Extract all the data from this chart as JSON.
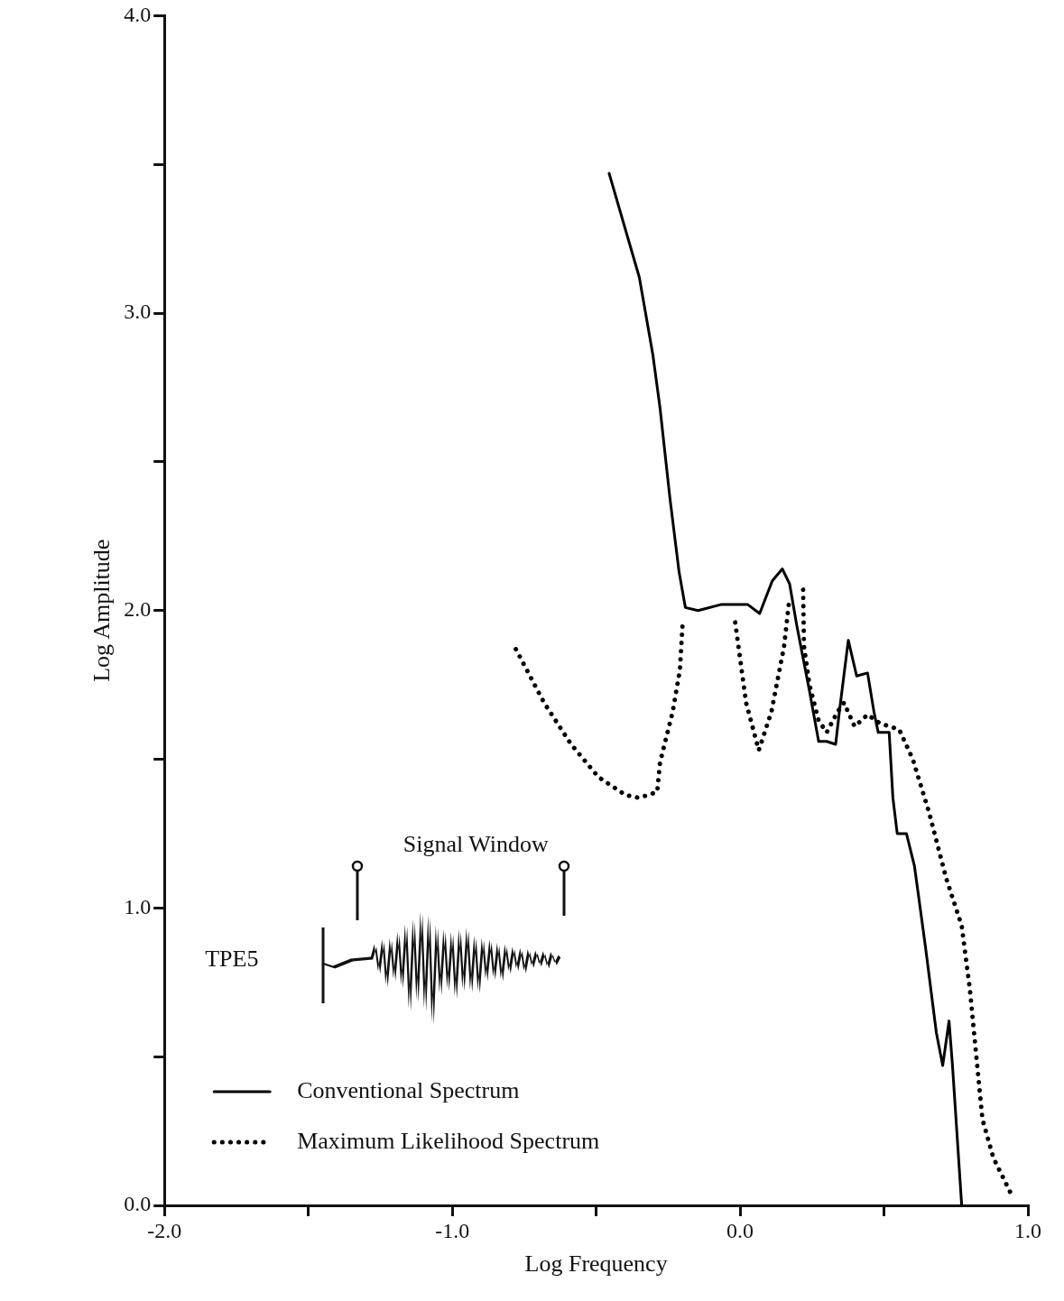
{
  "chart_data": {
    "type": "line",
    "xlabel": "Log Frequency",
    "ylabel": "Log Amplitude",
    "xlim": [
      -2,
      1
    ],
    "ylim": [
      0,
      4
    ],
    "xticks": [
      {
        "value": -2,
        "label": "-2.0"
      },
      {
        "value": -1.5,
        "label": null
      },
      {
        "value": -1,
        "label": "-1.0"
      },
      {
        "value": -0.5,
        "label": null
      },
      {
        "value": 0,
        "label": "0.0"
      },
      {
        "value": 0.5,
        "label": null
      },
      {
        "value": 1,
        "label": "1.0"
      }
    ],
    "yticks": [
      {
        "value": 0,
        "label": "0.0"
      },
      {
        "value": 0.5,
        "label": null
      },
      {
        "value": 1,
        "label": "1.0"
      },
      {
        "value": 1.5,
        "label": null
      },
      {
        "value": 2,
        "label": "2.0"
      },
      {
        "value": 2.5,
        "label": null
      },
      {
        "value": 3,
        "label": "3.0"
      },
      {
        "value": 3.5,
        "label": null
      },
      {
        "value": 4,
        "label": "4.0"
      }
    ],
    "grid": false,
    "legend": "bottom left",
    "marker": "none",
    "annotations": [
      "Signal Window",
      "TPE5"
    ],
    "series": [
      {
        "name": "Conventional Spectrum",
        "color": "#000000",
        "line_style": "solid",
        "x": [
          -0.455,
          -0.35,
          -0.303,
          -0.278,
          -0.244,
          -0.212,
          -0.19,
          -0.146,
          -0.067,
          0.027,
          0.068,
          0.112,
          0.147,
          0.172,
          0.197,
          0.241,
          0.273,
          0.301,
          0.332,
          0.345,
          0.376,
          0.405,
          0.443,
          0.465,
          0.48,
          0.518,
          0.531,
          0.546,
          0.578,
          0.606,
          0.644,
          0.682,
          0.704,
          0.726,
          0.738,
          0.77
        ],
        "values": [
          3.47,
          3.12,
          2.86,
          2.68,
          2.38,
          2.13,
          2.01,
          2.0,
          2.02,
          2.02,
          1.99,
          2.1,
          2.14,
          2.09,
          1.95,
          1.73,
          1.56,
          1.56,
          1.55,
          1.66,
          1.9,
          1.78,
          1.79,
          1.66,
          1.59,
          1.59,
          1.37,
          1.25,
          1.25,
          1.14,
          0.87,
          0.58,
          0.47,
          0.62,
          0.47,
          0.0
        ]
      },
      {
        "name": "Maximum Likelihood Spectrum",
        "color": "#000000",
        "line_style": "dotted",
        "x": [
          -0.779,
          -0.681,
          -0.587,
          -0.492,
          -0.398,
          -0.351,
          -0.288,
          -0.278,
          -0.234,
          -0.209,
          -0.2,
          -0.1,
          -0.017,
          0.021,
          0.065,
          0.109,
          0.153,
          0.169,
          0.195,
          0.219,
          0.222,
          0.241,
          0.273,
          0.301,
          0.339,
          0.361,
          0.398,
          0.443,
          0.487,
          0.553,
          0.6,
          0.657,
          0.716,
          0.77,
          0.798,
          0.82,
          0.842,
          0.88,
          0.946
        ],
        "values": [
          1.87,
          1.69,
          1.55,
          1.44,
          1.38,
          1.37,
          1.39,
          1.49,
          1.66,
          1.8,
          1.95,
          null,
          1.96,
          1.69,
          1.53,
          1.66,
          1.88,
          2.02,
          null,
          2.07,
          1.88,
          1.75,
          1.63,
          1.59,
          1.66,
          1.69,
          1.61,
          1.65,
          1.62,
          1.6,
          1.5,
          1.32,
          1.1,
          0.94,
          0.73,
          0.51,
          0.29,
          0.16,
          0.03
        ]
      }
    ]
  }
}
